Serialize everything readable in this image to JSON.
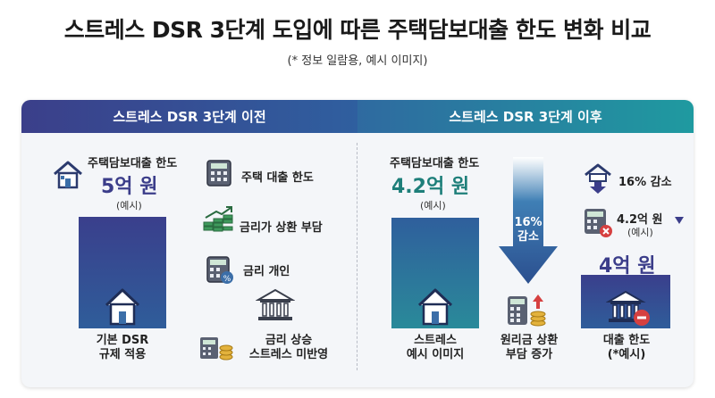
{
  "header": {
    "title": "스트레스 DSR 3단계 도입에 따른 주택담보대출 한도 변화 비교",
    "subtitle": "(* 정보 일람용, 예시 이미지)"
  },
  "left": {
    "heading": "스트레스 DSR 3단계 이전",
    "loan_label": "주택담보대출 한도",
    "loan_amount": "5억 원",
    "example": "(예시)",
    "factors": [
      "주택 대출 한도",
      "금리가 상환 부담",
      "금리 개인"
    ],
    "caption_base_1": "기본 DSR",
    "caption_base_2": "규제 적용",
    "caption_rate_1": "금리 상승",
    "caption_rate_2": "스트레스 미반영"
  },
  "right": {
    "heading": "스트레스 DSR 3단계 이후",
    "loan_label": "주택담보대출 한도",
    "loan_amount": "4.2억 원",
    "example": "(예시)",
    "arrow_pct": "16%",
    "arrow_word": "감소",
    "decrease_label": "16% 감소",
    "amount_42": "4.2억 원",
    "amount_42_example": "(예시)",
    "amount_4": "4억 원",
    "caption_stress_1": "스트레스",
    "caption_stress_2": "예시 이미지",
    "caption_principal_1": "원리금 상환",
    "caption_principal_2": "부담 증가",
    "caption_limit_1": "대출 한도",
    "caption_limit_2": "(*예시)"
  },
  "colors": {
    "navy": "#3b3d8a",
    "teal": "#1e7f7a",
    "accent_red": "#d64040"
  }
}
